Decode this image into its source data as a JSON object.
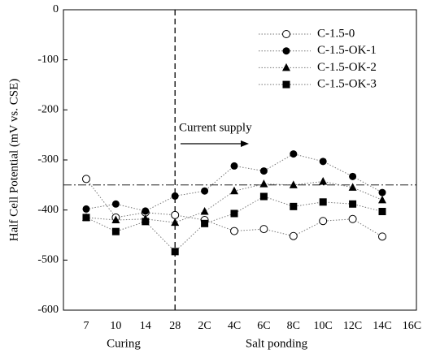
{
  "chart_data": {
    "type": "line",
    "y_label": "Half Cell Potential (mV vs. CSE)",
    "categories": [
      "7",
      "10",
      "14",
      "28",
      "2C",
      "4C",
      "6C",
      "8C",
      "10C",
      "12C",
      "14C",
      "16C"
    ],
    "x_groups": [
      "Curing",
      "Salt ponding"
    ],
    "annotation": "Current supply",
    "vline_at": "28",
    "hline": -350,
    "series": [
      {
        "name": "C-1.5-0",
        "color": "#000000",
        "marker": "open-circle",
        "values": [
          -338,
          -415,
          -405,
          -410,
          -420,
          -442,
          -438,
          -452,
          -422,
          -418,
          -453,
          null
        ]
      },
      {
        "name": "C-1.5-OK-1",
        "color": "#000000",
        "marker": "circle",
        "values": [
          -398,
          -388,
          -402,
          -372,
          -362,
          -312,
          -322,
          -288,
          -303,
          -333,
          -365,
          null
        ]
      },
      {
        "name": "C-1.5-OK-2",
        "color": "#000000",
        "marker": "triangle",
        "values": [
          -415,
          -420,
          -418,
          -425,
          -403,
          -362,
          -348,
          -350,
          -343,
          -355,
          -380,
          null
        ]
      },
      {
        "name": "C-1.5-OK-3",
        "color": "#000000",
        "marker": "square",
        "values": [
          -415,
          -443,
          -423,
          -483,
          -427,
          -407,
          -373,
          -393,
          -384,
          -388,
          -403,
          null
        ]
      }
    ],
    "ylim": [
      -600,
      0
    ],
    "yticks": [
      0,
      -100,
      -200,
      -300,
      -400,
      -500,
      -600
    ],
    "legend": "upper right"
  }
}
